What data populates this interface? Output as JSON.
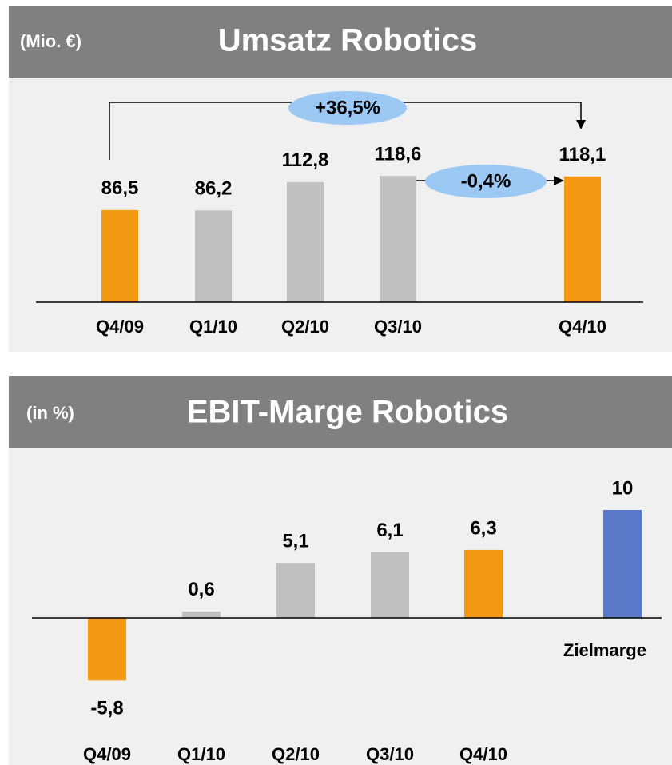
{
  "chart_data": [
    {
      "type": "bar",
      "unit_label": "(Mio. €)",
      "title": "Umsatz Robotics",
      "categories": [
        "Q4/09",
        "Q1/10",
        "Q2/10",
        "Q3/10",
        "Q4/10"
      ],
      "values": [
        86.5,
        86.2,
        112.8,
        118.6,
        118.1
      ],
      "value_labels": [
        "86,5",
        "86,2",
        "112,8",
        "118,6",
        "118,1"
      ],
      "colors": [
        "#f39813",
        "#c0c0c0",
        "#c0c0c0",
        "#c0c0c0",
        "#f39813"
      ],
      "ylim": [
        0,
        130
      ],
      "annotations": [
        "+36,5%",
        "-0,4%"
      ]
    },
    {
      "type": "bar",
      "unit_label": "(in %)",
      "title": "EBIT-Marge Robotics",
      "categories": [
        "Q4/09",
        "Q1/10",
        "Q2/10",
        "Q3/10",
        "Q4/10",
        "Zielmarge"
      ],
      "values": [
        -5.8,
        0.6,
        5.1,
        6.1,
        6.3,
        10
      ],
      "value_labels": [
        "-5,8",
        "0,6",
        "5,1",
        "6,1",
        "6,3",
        "10"
      ],
      "colors": [
        "#f39813",
        "#c0c0c0",
        "#c0c0c0",
        "#c0c0c0",
        "#f39813",
        "#5b78c8"
      ],
      "ylim": [
        -8,
        12
      ]
    }
  ]
}
